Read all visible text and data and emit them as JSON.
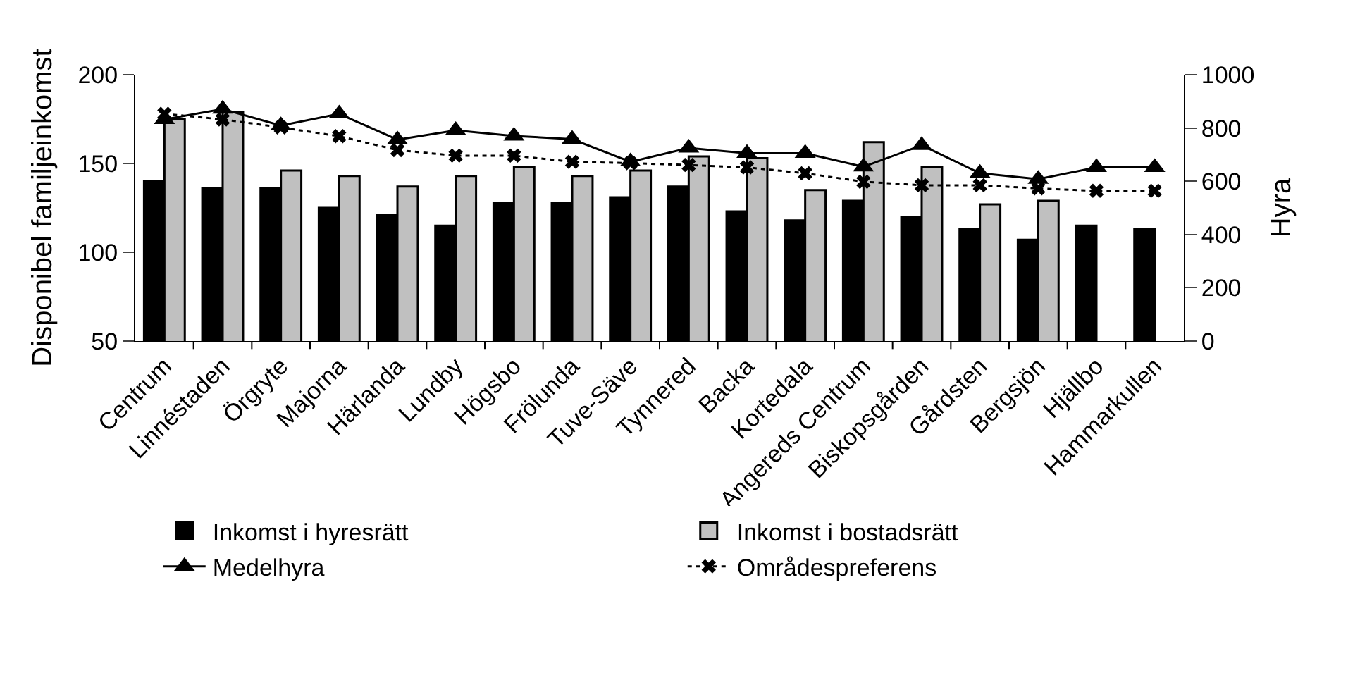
{
  "chart_data": {
    "type": "bar",
    "ylabel": "Disponibel familjeinkomst",
    "y2label": "Hyra",
    "categories": [
      "Centrum",
      "Linnéstaden",
      "Örgryte",
      "Majorna",
      "Härlanda",
      "Lundby",
      "Högsbo",
      "Frölunda",
      "Tuve-Säve",
      "Tynnered",
      "Backa",
      "Kortedala",
      "Angereds Centrum",
      "Biskopsgården",
      "Gårdsten",
      "Bergsjön",
      "Hjällbo",
      "Hammarkullen"
    ],
    "series": [
      {
        "name": "Inkomst i hyresrätt",
        "color": "#000000",
        "values": [
          140,
          136,
          136,
          125,
          121,
          115,
          128,
          128,
          131,
          137,
          123,
          118,
          129,
          120,
          113,
          107,
          115,
          113
        ]
      },
      {
        "name": "Inkomst i bostadsrätt",
        "color": "#c0c0c0",
        "values": [
          175,
          179,
          146,
          143,
          137,
          143,
          148,
          143,
          146,
          154,
          153,
          135,
          162,
          148,
          127,
          129,
          null,
          null
        ]
      },
      {
        "name": "Medelhyra",
        "type": "line",
        "axis": "y2",
        "color": "#000000",
        "marker": "triangle",
        "line_style": "solid",
        "values": [
          832,
          871,
          809,
          853,
          756,
          791,
          770,
          758,
          673,
          725,
          705,
          705,
          654,
          735,
          630,
          608,
          652,
          652
        ]
      },
      {
        "name": "Områdespreferens",
        "type": "line",
        "axis": "y2",
        "color": "#000000",
        "marker": "cross",
        "line_style": "dotted",
        "values": [
          853,
          832,
          802,
          769,
          717,
          696,
          696,
          673,
          668,
          661,
          652,
          630,
          598,
          585,
          585,
          573,
          564,
          564
        ]
      }
    ],
    "ylim": [
      50,
      200
    ],
    "yticks": [
      50,
      100,
      150,
      200
    ],
    "y2lim": [
      0,
      1000
    ],
    "y2ticks": [
      0,
      200,
      400,
      600,
      800,
      1000
    ],
    "grid": false,
    "legend": "bottom"
  }
}
